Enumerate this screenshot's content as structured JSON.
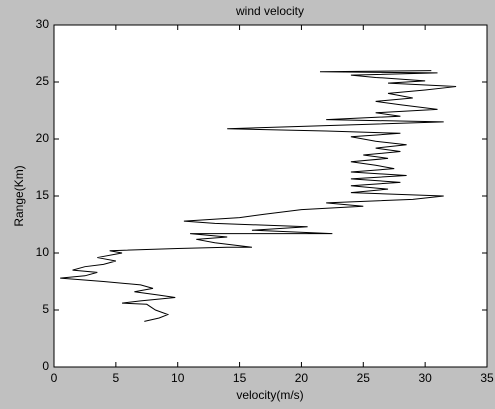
{
  "chart_data": {
    "type": "line",
    "title": "wind velocity",
    "x_label": "velocity(m/s)",
    "y_label": "Range(Km)",
    "xlim": [
      0,
      35
    ],
    "xticks": [
      0,
      5,
      10,
      15,
      20,
      25,
      30,
      35
    ],
    "ylim": [
      0,
      30
    ],
    "yticks": [
      0,
      5,
      10,
      15,
      20,
      25,
      30
    ],
    "grid": false,
    "series": [
      {
        "color": "#000000",
        "x": [
          7.3,
          8.5,
          9.2,
          8.2,
          7.5,
          5.5,
          7,
          9.8,
          8.5,
          6.5,
          8,
          7,
          4,
          0.5,
          2.5,
          3.5,
          1.5,
          2.5,
          4,
          5,
          3.5,
          5.5,
          4.5,
          10,
          14,
          16,
          13,
          11.5,
          14,
          11,
          22.5,
          16,
          20.5,
          13,
          10.5,
          15,
          17,
          20,
          25,
          22,
          29,
          31.5,
          24,
          27,
          24,
          28,
          24,
          28.5,
          24,
          27.5,
          26,
          24,
          27,
          25,
          28,
          26,
          28.5,
          26,
          24,
          28,
          22,
          14,
          31.5,
          22,
          28,
          26,
          31,
          28,
          26,
          29,
          27,
          30,
          32.5,
          27,
          30,
          26,
          24,
          31,
          21.5,
          30.5
        ],
        "values": [
          4.0,
          4.3,
          4.6,
          5.0,
          5.5,
          5.6,
          5.8,
          6.1,
          6.3,
          6.6,
          6.9,
          7.2,
          7.5,
          7.8,
          8.0,
          8.3,
          8.5,
          8.8,
          9.0,
          9.3,
          9.6,
          10.0,
          10.2,
          10.4,
          10.5,
          10.5,
          10.9,
          11.2,
          11.4,
          11.7,
          11.7,
          12.0,
          12.3,
          12.6,
          12.8,
          13.1,
          13.4,
          13.8,
          14.1,
          14.4,
          14.7,
          15.0,
          15.3,
          15.6,
          15.9,
          16.2,
          16.5,
          16.8,
          17.1,
          17.4,
          17.7,
          18.0,
          18.3,
          18.6,
          18.9,
          19.2,
          19.5,
          19.8,
          20.2,
          20.5,
          20.7,
          20.9,
          21.5,
          21.7,
          22.0,
          22.3,
          22.6,
          23.0,
          23.3,
          23.6,
          24.0,
          24.3,
          24.6,
          24.9,
          25.1,
          25.4,
          25.6,
          25.8,
          25.9,
          26.0
        ]
      }
    ]
  }
}
